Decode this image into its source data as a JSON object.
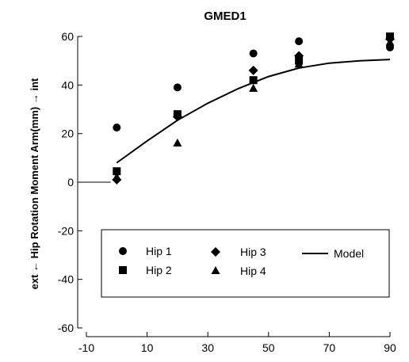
{
  "chart_data": {
    "type": "scatter",
    "title": "GMED1",
    "ylabel": "ext ← Hip Rotation Moment Arm(mm) → int",
    "xlabel": "",
    "xlim": [
      -10,
      90
    ],
    "ylim": [
      -60,
      60
    ],
    "x_ticks": [
      -10,
      10,
      30,
      50,
      70,
      90
    ],
    "y_ticks": [
      -60,
      -40,
      -20,
      0,
      20,
      40,
      60
    ],
    "grid": false,
    "legend_position": "inside-lower",
    "series": [
      {
        "name": "Hip 1",
        "marker": "circle",
        "x": [
          0,
          20,
          45,
          60,
          90
        ],
        "y": [
          22.5,
          39,
          53,
          58,
          55.5
        ]
      },
      {
        "name": "Hip 2",
        "marker": "square",
        "x": [
          0,
          20,
          45,
          60,
          90
        ],
        "y": [
          4.5,
          28,
          42,
          50,
          60
        ]
      },
      {
        "name": "Hip 3",
        "marker": "diamond",
        "x": [
          0,
          20,
          45,
          60,
          90
        ],
        "y": [
          1,
          27,
          46,
          52,
          59
        ]
      },
      {
        "name": "Hip 4",
        "marker": "triangle",
        "x": [
          0,
          20,
          45,
          60,
          90
        ],
        "y": [
          2,
          16,
          38.5,
          48.5,
          57.5
        ]
      }
    ],
    "model": {
      "name": "Model",
      "x": [
        0,
        10,
        20,
        30,
        40,
        50,
        60,
        70,
        80,
        90
      ],
      "y": [
        8,
        17,
        25.5,
        32.5,
        38.5,
        43.5,
        47,
        49,
        50,
        50.5
      ]
    }
  }
}
